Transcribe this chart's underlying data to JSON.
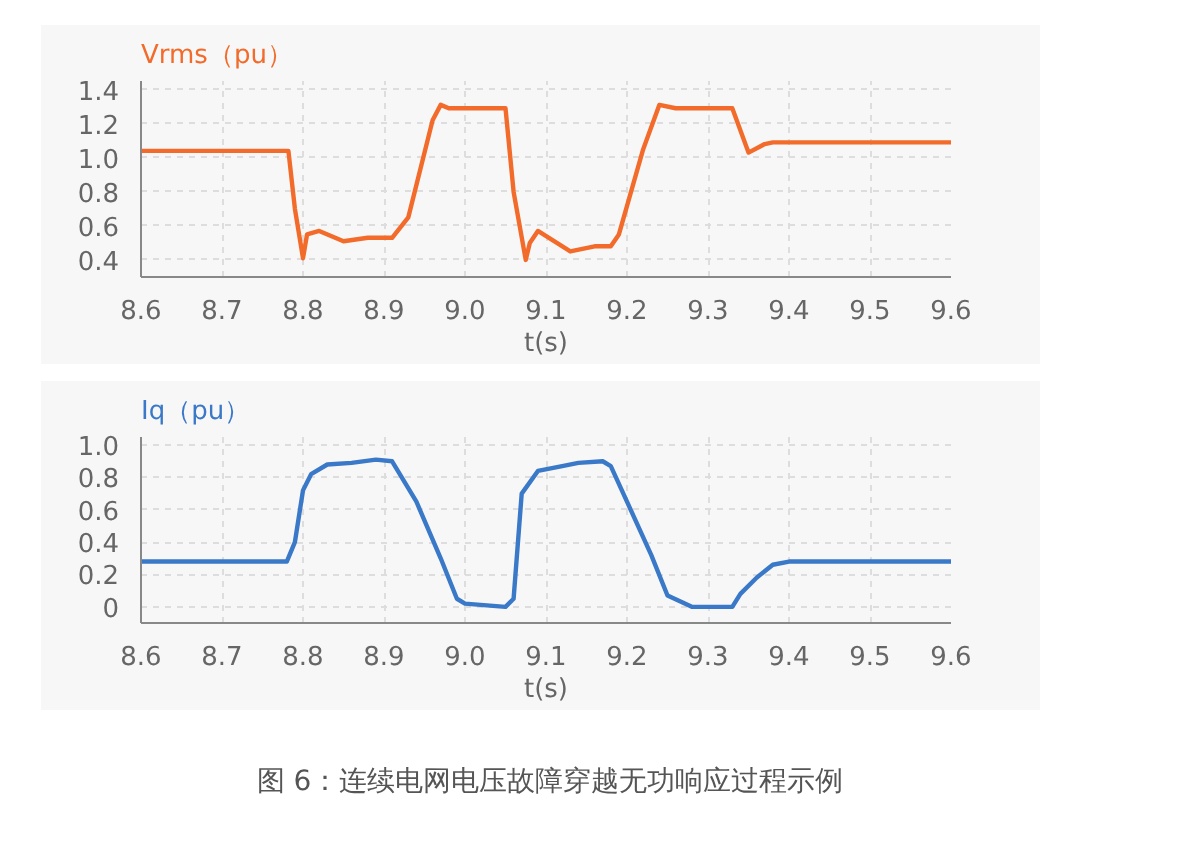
{
  "chart_data": [
    {
      "type": "line",
      "ylabel": "Vrms（pu）",
      "xlabel": "t(s)",
      "xlim": [
        8.6,
        9.6
      ],
      "xticks": [
        8.6,
        8.7,
        8.8,
        8.9,
        {
          "value": 9,
          "label": "9.0"
        },
        9.1,
        9.2,
        9.3,
        9.4,
        9.5,
        9.6
      ],
      "ylim": [
        0.3,
        1.45
      ],
      "yticks": [
        0.4,
        0.6,
        0.8,
        {
          "value": 1,
          "label": "1.0"
        },
        1.2,
        1.4
      ],
      "grid": true,
      "marker": "none",
      "line_style": "solid",
      "x": [
        8.6,
        8.78,
        8.782,
        8.79,
        8.8,
        8.805,
        8.82,
        8.85,
        8.88,
        8.91,
        8.93,
        8.96,
        8.97,
        8.98,
        9.05,
        9.06,
        9.075,
        9.08,
        9.09,
        9.13,
        9.16,
        9.18,
        9.19,
        9.22,
        9.24,
        9.26,
        9.33,
        9.35,
        9.37,
        9.38,
        9.6
      ],
      "series": [
        {
          "color": "#f26b2a",
          "values": [
            1.04,
            1.04,
            1.04,
            0.7,
            0.41,
            0.55,
            0.57,
            0.51,
            0.53,
            0.53,
            0.65,
            1.22,
            1.31,
            1.29,
            1.29,
            0.8,
            0.4,
            0.5,
            0.57,
            0.45,
            0.48,
            0.48,
            0.55,
            1.05,
            1.31,
            1.29,
            1.29,
            1.03,
            1.08,
            1.09,
            1.09
          ]
        }
      ]
    },
    {
      "type": "line",
      "ylabel": "Iq（pu）",
      "xlabel": "t(s)",
      "xlim": [
        8.6,
        9.6
      ],
      "xticks": [
        8.6,
        8.7,
        8.8,
        8.9,
        {
          "value": 9,
          "label": "9.0"
        },
        9.1,
        9.2,
        9.3,
        9.4,
        9.5,
        9.6
      ],
      "ylim": [
        -0.1,
        1.05
      ],
      "yticks": [
        0,
        0.2,
        0.4,
        0.6,
        0.8,
        {
          "value": 1,
          "label": "1.0"
        }
      ],
      "grid": true,
      "marker": "none",
      "line_style": "solid",
      "x": [
        8.6,
        8.78,
        8.79,
        8.8,
        8.81,
        8.83,
        8.86,
        8.89,
        8.91,
        8.94,
        8.97,
        8.99,
        9.0,
        9.05,
        9.06,
        9.07,
        9.09,
        9.12,
        9.14,
        9.17,
        9.18,
        9.2,
        9.23,
        9.25,
        9.28,
        9.33,
        9.34,
        9.36,
        9.38,
        9.4,
        9.6
      ],
      "series": [
        {
          "color": "#3a78c8",
          "values": [
            0.28,
            0.28,
            0.4,
            0.72,
            0.82,
            0.88,
            0.89,
            0.91,
            0.9,
            0.65,
            0.3,
            0.05,
            0.02,
            0.0,
            0.05,
            0.7,
            0.84,
            0.87,
            0.89,
            0.9,
            0.87,
            0.65,
            0.32,
            0.07,
            0.0,
            0.0,
            0.08,
            0.18,
            0.26,
            0.28,
            0.28
          ]
        }
      ],
      "annotations": [
        "图 6：连续电网电压故障穿越无功响应过程示例"
      ]
    }
  ]
}
